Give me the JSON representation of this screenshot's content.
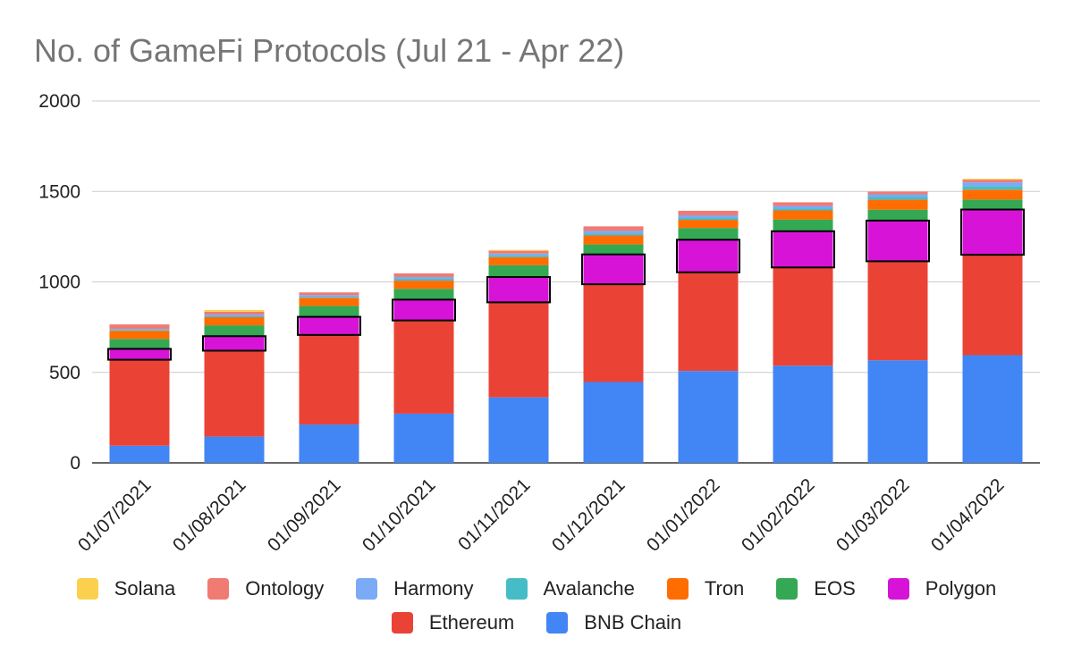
{
  "chart_data": {
    "type": "bar",
    "stacked": true,
    "title": "No. of GameFi Protocols (Jul 21 - Apr 22)",
    "xlabel": "",
    "ylabel": "",
    "ylim": [
      0,
      2000
    ],
    "yticks": [
      "0",
      "500",
      "1000",
      "1500",
      "2000"
    ],
    "grid": true,
    "legend_position": "bottom",
    "categories": [
      "01/07/2021",
      "01/08/2021",
      "01/09/2021",
      "01/10/2021",
      "01/11/2021",
      "01/12/2021",
      "01/01/2022",
      "01/02/2022",
      "01/03/2022",
      "01/04/2022"
    ],
    "highlighted_series": "Polygon",
    "series": [
      {
        "name": "BNB Chain",
        "color": "#4285f4",
        "values": [
          95,
          145,
          212,
          272,
          362,
          447,
          508,
          537,
          567,
          595
        ]
      },
      {
        "name": "Ethereum",
        "color": "#ea4335",
        "values": [
          475,
          475,
          495,
          515,
          525,
          540,
          545,
          543,
          547,
          555
        ]
      },
      {
        "name": "Polygon",
        "color": "#d713d7",
        "values": [
          60,
          80,
          100,
          115,
          140,
          165,
          180,
          200,
          225,
          250
        ]
      },
      {
        "name": "EOS",
        "color": "#34a853",
        "values": [
          55,
          60,
          60,
          60,
          65,
          55,
          65,
          65,
          60,
          55
        ]
      },
      {
        "name": "Tron",
        "color": "#ff6d01",
        "values": [
          45,
          45,
          45,
          45,
          45,
          50,
          45,
          50,
          55,
          55
        ]
      },
      {
        "name": "Avalanche",
        "color": "#46bdc6",
        "values": [
          5,
          5,
          5,
          10,
          10,
          10,
          10,
          10,
          15,
          20
        ]
      },
      {
        "name": "Harmony",
        "color": "#7baaf7",
        "values": [
          5,
          10,
          10,
          10,
          10,
          15,
          15,
          15,
          15,
          20
        ]
      },
      {
        "name": "Ontology",
        "color": "#f07b72",
        "values": [
          25,
          15,
          15,
          20,
          15,
          25,
          25,
          20,
          15,
          15
        ]
      },
      {
        "name": "Solana",
        "color": "#fcd04f",
        "values": [
          0,
          10,
          0,
          0,
          5,
          0,
          0,
          0,
          0,
          5
        ]
      }
    ]
  },
  "legend": {
    "rows": [
      [
        {
          "label": "Solana",
          "color": "#fcd04f"
        },
        {
          "label": "Ontology",
          "color": "#f07b72"
        },
        {
          "label": "Harmony",
          "color": "#7baaf7"
        },
        {
          "label": "Avalanche",
          "color": "#46bdc6"
        },
        {
          "label": "Tron",
          "color": "#ff6d01"
        },
        {
          "label": "EOS",
          "color": "#34a853"
        },
        {
          "label": "Polygon",
          "color": "#d713d7"
        }
      ],
      [
        {
          "label": "Ethereum",
          "color": "#ea4335"
        },
        {
          "label": "BNB Chain",
          "color": "#4285f4"
        }
      ]
    ]
  }
}
